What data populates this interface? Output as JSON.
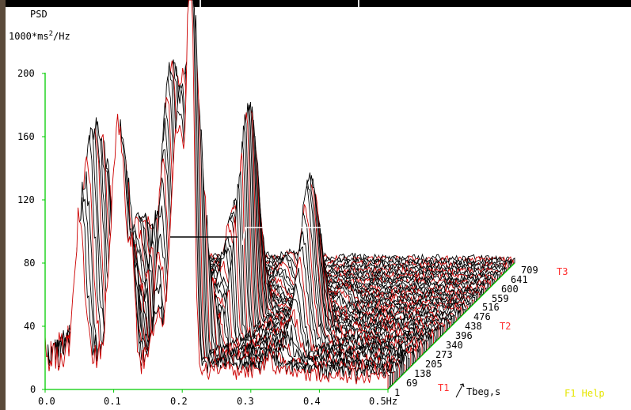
{
  "window": {
    "top_bar_color": "#000000",
    "left_strip_color": "#5a4a3a"
  },
  "chart_data": {
    "type": "waterfall-3d",
    "title": "",
    "ylabel_line1": "PSD",
    "ylabel_line2": "1000*ms²/Hz",
    "ylabel_line2_base": "1000*ms",
    "ylabel_line2_sup": "2",
    "ylabel_line2_tail": "/Hz",
    "y_ticks": [
      "0",
      "40",
      "80",
      "120",
      "160",
      "200"
    ],
    "y_values": [
      0,
      40,
      80,
      120,
      160,
      200
    ],
    "ylim": [
      0,
      200
    ],
    "x_ticks": [
      "0.0",
      "0.1",
      "0.2",
      "0.3",
      "0.4",
      "0.5Hz"
    ],
    "x_values": [
      0.0,
      0.1,
      0.2,
      0.3,
      0.4,
      0.5
    ],
    "xlim": [
      0,
      0.5
    ],
    "z_ticks": [
      "1",
      "69",
      "138",
      "205",
      "273",
      "340",
      "396",
      "438",
      "476",
      "516",
      "559",
      "600",
      "641",
      "709"
    ],
    "z_values": [
      1,
      69,
      138,
      205,
      273,
      340,
      396,
      438,
      476,
      516,
      559,
      600,
      641,
      709
    ],
    "z_axis_label": "Tbeg,s",
    "markers": [
      {
        "label": "T1",
        "at": 69
      },
      {
        "label": "T2",
        "at": 438
      },
      {
        "label": "T3",
        "at": 709
      }
    ],
    "dominant_peaks_hz": [
      0.05,
      0.1,
      0.12,
      0.16,
      0.2,
      0.22,
      0.33
    ],
    "colors": {
      "axis": "#00cc00",
      "trace_primary": "#000000",
      "trace_secondary": "#cc0000",
      "floor": "#0000cc",
      "grid_floor": "#00cc00",
      "marker": "#ff3030",
      "help": "#e6e600"
    }
  },
  "status": {
    "help_label": "F1 Help"
  }
}
